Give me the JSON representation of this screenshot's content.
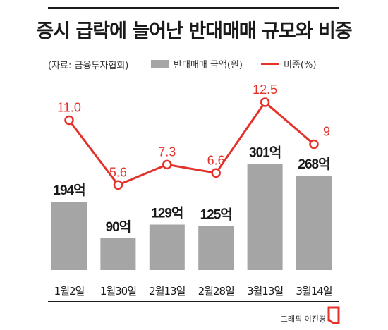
{
  "title": "증시 급락에 늘어난 반대매매 규모와 비중",
  "source": "(자료: 금융투자협회)",
  "legend": {
    "bar": "반대매매 금액(원)",
    "line": "비중(%)"
  },
  "credit": "그래픽 이진경",
  "colors": {
    "bar": "#a5a5a6",
    "line": "#e4322b",
    "text": "#1a1a1a"
  },
  "chart_data": {
    "type": "bar",
    "categories": [
      "1월2일",
      "1월30일",
      "2월13일",
      "2월28일",
      "3월13일",
      "3월14일"
    ],
    "series": [
      {
        "name": "반대매매 금액(원)",
        "type": "bar",
        "values": [
          194,
          90,
          129,
          125,
          301,
          268
        ],
        "labels": [
          "194억",
          "90억",
          "129억",
          "125억",
          "301억",
          "268억"
        ]
      },
      {
        "name": "비중(%)",
        "type": "line",
        "values": [
          11.0,
          5.6,
          7.3,
          6.6,
          12.5,
          9
        ],
        "labels": [
          "11.0",
          "5.6",
          "7.3",
          "6.6",
          "12.5",
          "9"
        ]
      }
    ],
    "legend": "top"
  }
}
